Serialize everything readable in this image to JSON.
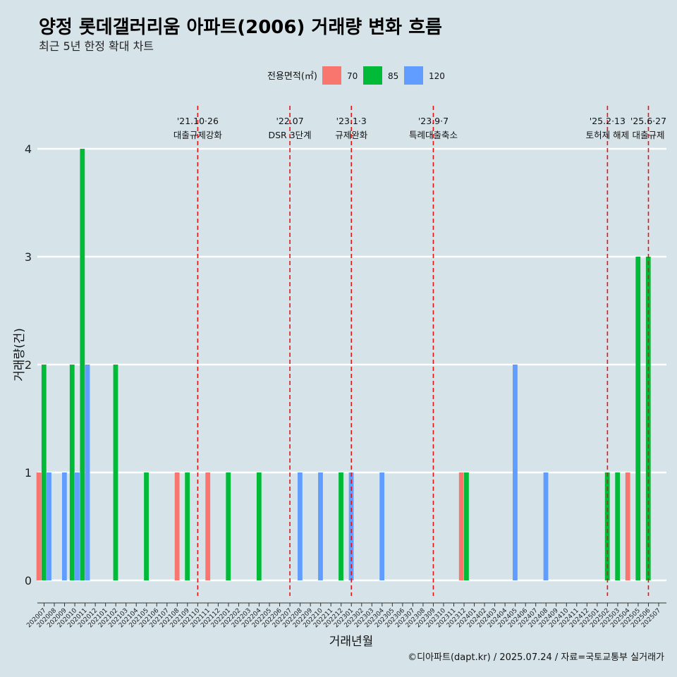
{
  "title": "양정 롯데갤러리움 아파트(2006) 거래량 변화 흐름",
  "subtitle": "최근 5년 한정 확대 차트",
  "caption": "©디아파트(dapt.kr) / 2025.07.24 / 자료=국토교통부 실거래가",
  "chart_data": {
    "type": "bar",
    "xlabel": "거래년월",
    "ylabel": "거래량(건)",
    "ylim": [
      0,
      4
    ],
    "yticks": [
      0,
      1,
      2,
      3,
      4
    ],
    "grid": true,
    "legend": {
      "title": "전용면적(㎡)",
      "position": "top",
      "items": [
        {
          "label": "70",
          "color": "#F8766D"
        },
        {
          "label": "85",
          "color": "#00BA38"
        },
        {
          "label": "120",
          "color": "#619CFF"
        }
      ]
    },
    "categories": [
      "202007",
      "202008",
      "202009",
      "202010",
      "202011",
      "202012",
      "202101",
      "202102",
      "202103",
      "202104",
      "202105",
      "202106",
      "202107",
      "202108",
      "202109",
      "202110",
      "202111",
      "202112",
      "202201",
      "202202",
      "202203",
      "202204",
      "202205",
      "202206",
      "202207",
      "202208",
      "202209",
      "202210",
      "202211",
      "202212",
      "202301",
      "202302",
      "202303",
      "202304",
      "202305",
      "202306",
      "202307",
      "202308",
      "202309",
      "202310",
      "202311",
      "202312",
      "202401",
      "202402",
      "202403",
      "202404",
      "202405",
      "202406",
      "202407",
      "202408",
      "202409",
      "202410",
      "202411",
      "202412",
      "202501",
      "202502",
      "202503",
      "202504",
      "202505",
      "202506",
      "202507"
    ],
    "series": [
      {
        "name": "70",
        "color": "#F8766D",
        "points": [
          [
            "202007",
            1
          ],
          [
            "202108",
            1
          ],
          [
            "202111",
            1
          ],
          [
            "202312",
            1
          ],
          [
            "202504",
            1
          ]
        ]
      },
      {
        "name": "85",
        "color": "#00BA38",
        "points": [
          [
            "202007",
            2
          ],
          [
            "202010",
            2
          ],
          [
            "202011",
            4
          ],
          [
            "202102",
            2
          ],
          [
            "202105",
            1
          ],
          [
            "202109",
            1
          ],
          [
            "202201",
            1
          ],
          [
            "202204",
            1
          ],
          [
            "202212",
            1
          ],
          [
            "202312",
            1
          ],
          [
            "202502",
            1
          ],
          [
            "202503",
            1
          ],
          [
            "202505",
            3
          ],
          [
            "202506",
            3
          ]
        ]
      },
      {
        "name": "120",
        "color": "#619CFF",
        "points": [
          [
            "202007",
            1
          ],
          [
            "202009",
            1
          ],
          [
            "202010",
            1
          ],
          [
            "202011",
            2
          ],
          [
            "202208",
            1
          ],
          [
            "202210",
            1
          ],
          [
            "202301",
            1
          ],
          [
            "202304",
            1
          ],
          [
            "202405",
            2
          ],
          [
            "202408",
            1
          ]
        ]
      }
    ],
    "events": [
      {
        "date": "'21.10·26",
        "label": "대출규제강화",
        "at": "202110"
      },
      {
        "date": "'22.07",
        "label": "DSR 3단계",
        "at": "202207"
      },
      {
        "date": "'23.1·3",
        "label": "규제완화",
        "at": "202301"
      },
      {
        "date": "'23.9·7",
        "label": "특례대출축소",
        "at": "202309"
      },
      {
        "date": "'25.2·13",
        "label": "토허제 해제",
        "at": "202502"
      },
      {
        "date": "'25.6·27",
        "label": "대출규제",
        "at": "202506"
      }
    ]
  }
}
